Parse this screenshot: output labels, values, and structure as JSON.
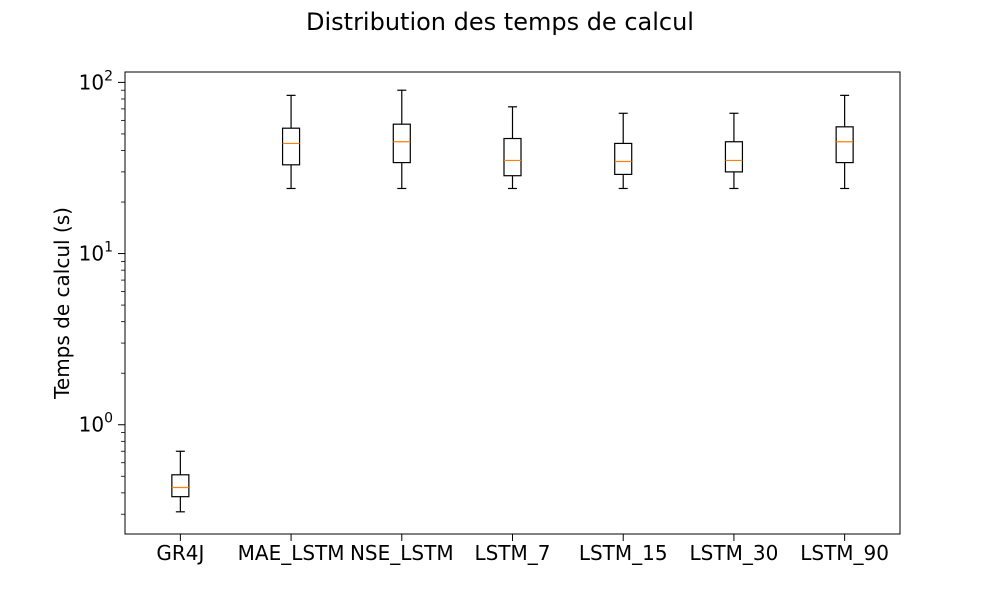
{
  "chart_data": {
    "type": "box",
    "title": "Distribution des temps de calcul",
    "xlabel": "",
    "ylabel": "Temps de calcul (s)",
    "yscale": "log",
    "ylim": [
      0.23,
      115
    ],
    "y_ticks": [
      {
        "value": 1,
        "base": "10",
        "exp": "0"
      },
      {
        "value": 10,
        "base": "10",
        "exp": "1"
      },
      {
        "value": 100,
        "base": "10",
        "exp": "2"
      }
    ],
    "categories": [
      "GR4J",
      "MAE_LSTM",
      "NSE_LSTM",
      "LSTM_7",
      "LSTM_15",
      "LSTM_30",
      "LSTM_90"
    ],
    "boxes": [
      {
        "whislo": 0.31,
        "q1": 0.38,
        "med": 0.43,
        "q3": 0.51,
        "whishi": 0.7
      },
      {
        "whislo": 24,
        "q1": 33,
        "med": 44,
        "q3": 54,
        "whishi": 84
      },
      {
        "whislo": 24,
        "q1": 34,
        "med": 45,
        "q3": 57,
        "whishi": 90
      },
      {
        "whislo": 24,
        "q1": 28.5,
        "med": 35,
        "q3": 47,
        "whishi": 72
      },
      {
        "whislo": 24,
        "q1": 29,
        "med": 34.5,
        "q3": 44,
        "whishi": 66
      },
      {
        "whislo": 24,
        "q1": 30,
        "med": 35,
        "q3": 45,
        "whishi": 66
      },
      {
        "whislo": 24,
        "q1": 34,
        "med": 45,
        "q3": 55,
        "whishi": 84
      }
    ],
    "grid": false,
    "colors": {
      "box": "#000000",
      "median": "#ff7f0e"
    }
  }
}
